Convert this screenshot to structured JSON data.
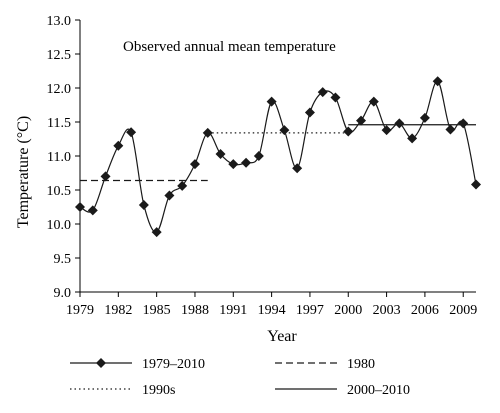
{
  "chart_data": {
    "type": "line",
    "title": "Observed annual mean temperature",
    "xlabel": "Year",
    "ylabel": "Temperature (°C)",
    "xlim": [
      1979,
      2010
    ],
    "ylim": [
      9.0,
      13.0
    ],
    "x_ticks": [
      1979,
      1982,
      1985,
      1988,
      1991,
      1994,
      1997,
      2000,
      2003,
      2006,
      2009
    ],
    "y_ticks": [
      9.0,
      9.5,
      10.0,
      10.5,
      11.0,
      11.5,
      12.0,
      12.5,
      13.0
    ],
    "grid": false,
    "legend_position": "bottom",
    "series": [
      {
        "name": "1979–2010",
        "style": "solid-with-diamond-markers",
        "color": "#1a1a1a",
        "x": [
          1979,
          1980,
          1981,
          1982,
          1983,
          1984,
          1985,
          1986,
          1987,
          1988,
          1989,
          1990,
          1991,
          1992,
          1993,
          1994,
          1995,
          1996,
          1997,
          1998,
          1999,
          2000,
          2001,
          2002,
          2003,
          2004,
          2005,
          2006,
          2007,
          2008,
          2009,
          2010
        ],
        "y": [
          10.25,
          10.2,
          10.7,
          11.15,
          11.35,
          10.28,
          9.88,
          10.42,
          10.56,
          10.88,
          11.34,
          11.03,
          10.88,
          10.9,
          11.0,
          11.8,
          11.38,
          10.82,
          11.64,
          11.94,
          11.86,
          11.36,
          11.52,
          11.8,
          11.38,
          11.48,
          11.26,
          11.56,
          12.1,
          11.39,
          11.48,
          10.58
        ]
      },
      {
        "name": "1980",
        "style": "dashed",
        "color": "#1a1a1a",
        "x": [
          1979,
          1989
        ],
        "y": [
          10.64,
          10.64
        ]
      },
      {
        "name": "1990s",
        "style": "dotted",
        "color": "#1a1a1a",
        "x": [
          1989,
          2000
        ],
        "y": [
          11.34,
          11.34
        ]
      },
      {
        "name": "2000–2010",
        "style": "solid",
        "color": "#1a1a1a",
        "x": [
          2000,
          2010
        ],
        "y": [
          11.46,
          11.46
        ]
      }
    ]
  }
}
